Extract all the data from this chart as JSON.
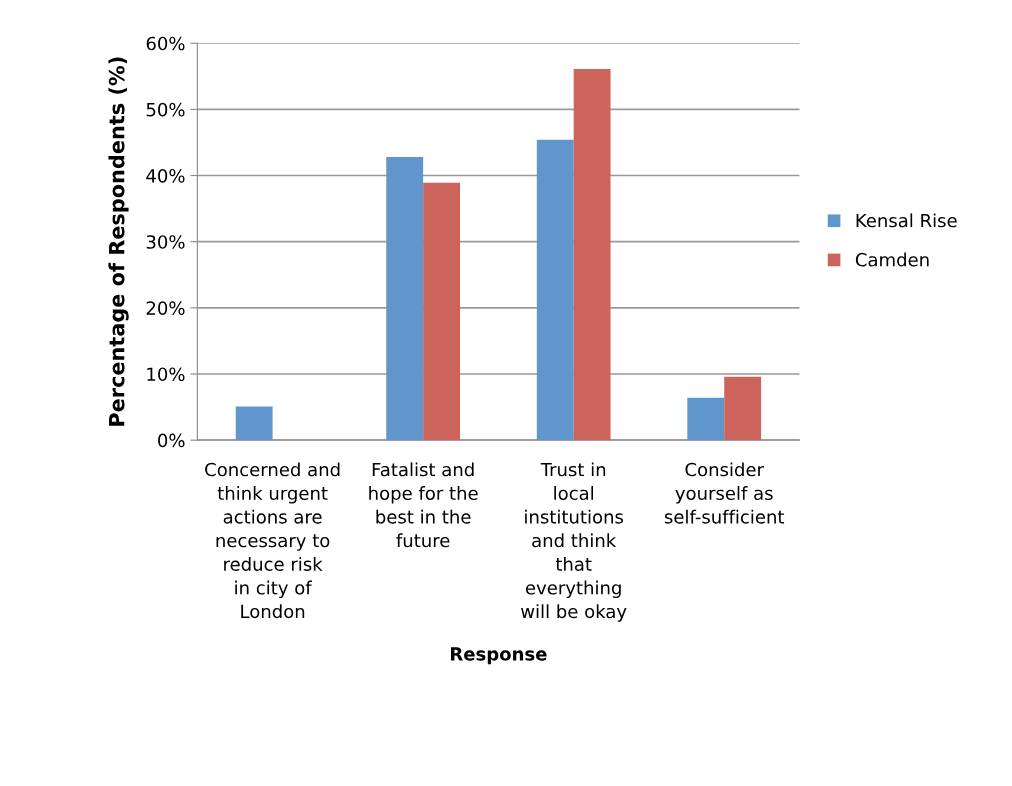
{
  "chart_data": {
    "type": "bar",
    "xlabel": "Response",
    "ylabel": "Percentage of Respondents (%)",
    "categories": [
      "Concerned and think urgent actions are necessary to reduce risk in city of London",
      "Fatalist and hope for the best in the future",
      "Trust in local institutions and think that everything will be okay",
      "Consider yourself as self-sufficient"
    ],
    "series": [
      {
        "name": "Kensal Rise",
        "color": "#6096cb",
        "values": [
          5.1,
          42.8,
          45.4,
          6.4
        ]
      },
      {
        "name": "Camden",
        "color": "#cc645d",
        "values": [
          0,
          38.9,
          56.1,
          9.6
        ]
      }
    ],
    "ylim": [
      0,
      60
    ],
    "yticks": [
      {
        "value": 0,
        "label": "0%"
      },
      {
        "value": 10,
        "label": "10%"
      },
      {
        "value": 20,
        "label": "20%"
      },
      {
        "value": 30,
        "label": "30%"
      },
      {
        "value": 40,
        "label": "40%"
      },
      {
        "value": 50,
        "label": "50%"
      },
      {
        "value": 60,
        "label": "60%"
      }
    ],
    "grid": "y",
    "legend": "right"
  }
}
